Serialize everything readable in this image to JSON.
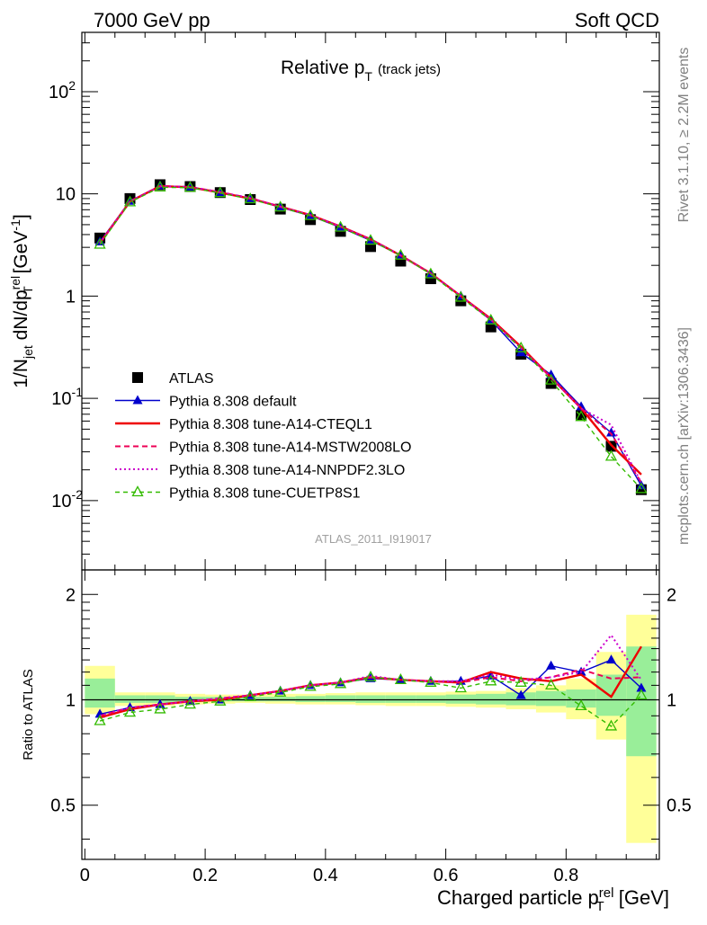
{
  "header": {
    "left": "7000 GeV pp",
    "right": "Soft QCD",
    "side_top": "Rivet 3.1.10, ≥ 2.2M events",
    "side_bottom": "mcplots.cern.ch [arXiv:1306.3436]",
    "analysis_id": "ATLAS_2011_I919017"
  },
  "chart_data": {
    "type": "line",
    "title_main": "Relative p",
    "title_sub": "T",
    "title_note": "(track jets)",
    "ylabel": "1/N_jet dN/dp_T^rel [GeV^-1]",
    "ratio_ylabel": "Ratio to ATLAS",
    "xlabel": "Charged particle p_T^rel [GeV]",
    "x_ticks": [
      "0",
      "0.2",
      "0.4",
      "0.6",
      "0.8"
    ],
    "y_ticks": [
      "10^-2",
      "10^-1",
      "1",
      "10",
      "10^2"
    ],
    "ratio_ticks": [
      "0.5",
      "1",
      "2"
    ],
    "xlim": [
      -0.005,
      0.955
    ],
    "ylim": [
      0.0021,
      380
    ],
    "ratio_ylim": [
      0.35,
      2.35
    ],
    "ratio_scale": "log",
    "y_scale": "log",
    "legend_position": "bottom-left",
    "x": [
      0.025,
      0.075,
      0.125,
      0.175,
      0.225,
      0.275,
      0.325,
      0.375,
      0.425,
      0.475,
      0.525,
      0.575,
      0.625,
      0.675,
      0.725,
      0.775,
      0.825,
      0.875,
      0.925
    ],
    "series": [
      {
        "name": "ATLAS",
        "style": "data",
        "color": "#000000",
        "values": [
          3.7,
          9.0,
          12.3,
          11.8,
          10.3,
          8.8,
          7.1,
          5.6,
          4.3,
          3.05,
          2.2,
          1.48,
          0.9,
          0.5,
          0.27,
          0.14,
          0.068,
          0.034,
          0.0128
        ],
        "ratio": [
          1,
          1,
          1,
          1,
          1,
          1,
          1,
          1,
          1,
          1,
          1,
          1,
          1,
          1,
          1,
          1,
          1,
          1,
          1
        ]
      },
      {
        "name": "Pythia 8.308 default",
        "style": "default",
        "color": "#0000cc",
        "values": [
          3.4,
          8.5,
          12.0,
          11.7,
          10.3,
          9.0,
          7.4,
          6.1,
          4.7,
          3.5,
          2.5,
          1.66,
          1.0,
          0.58,
          0.28,
          0.17,
          0.083,
          0.046,
          0.014
        ],
        "ratio": [
          0.91,
          0.95,
          0.97,
          0.99,
          1.0,
          1.03,
          1.06,
          1.1,
          1.12,
          1.15,
          1.14,
          1.13,
          1.13,
          1.17,
          1.03,
          1.25,
          1.2,
          1.3,
          1.08
        ]
      },
      {
        "name": "Pythia 8.308 tune-A14-CTEQL1",
        "style": "solid",
        "color": "#ee0000",
        "values": [
          3.3,
          8.4,
          11.9,
          11.6,
          10.3,
          9.0,
          7.5,
          6.2,
          4.8,
          3.6,
          2.5,
          1.67,
          1.0,
          0.6,
          0.32,
          0.16,
          0.08,
          0.035,
          0.018
        ],
        "ratio": [
          0.89,
          0.94,
          0.97,
          0.99,
          1.0,
          1.03,
          1.06,
          1.1,
          1.12,
          1.16,
          1.14,
          1.13,
          1.12,
          1.2,
          1.15,
          1.13,
          1.18,
          1.02,
          1.42
        ]
      },
      {
        "name": "Pythia 8.308 tune-A14-MSTW2008LO",
        "style": "dashed",
        "color": "#ee0055",
        "values": [
          3.3,
          8.5,
          11.9,
          11.7,
          10.4,
          9.1,
          7.5,
          6.2,
          4.8,
          3.6,
          2.5,
          1.67,
          1.0,
          0.59,
          0.31,
          0.16,
          0.08,
          0.045,
          0.015
        ],
        "ratio": [
          0.9,
          0.95,
          0.97,
          0.99,
          1.01,
          1.03,
          1.06,
          1.1,
          1.12,
          1.16,
          1.14,
          1.13,
          1.12,
          1.16,
          1.13,
          1.16,
          1.22,
          1.15,
          1.16
        ]
      },
      {
        "name": "Pythia 8.308 tune-A14-NNPDF2.3LO",
        "style": "dotted",
        "color": "#cc00cc",
        "values": [
          3.3,
          8.5,
          11.9,
          11.7,
          10.4,
          9.1,
          7.5,
          6.2,
          4.8,
          3.6,
          2.5,
          1.67,
          1.0,
          0.59,
          0.31,
          0.16,
          0.08,
          0.055,
          0.015
        ],
        "ratio": [
          0.9,
          0.95,
          0.97,
          0.99,
          1.01,
          1.03,
          1.06,
          1.1,
          1.12,
          1.17,
          1.14,
          1.13,
          1.13,
          1.18,
          1.14,
          1.16,
          1.2,
          1.53,
          1.14
        ]
      },
      {
        "name": "Pythia 8.308 tune-CUETP8S1",
        "style": "cuetp",
        "color": "#33bb00",
        "values": [
          3.2,
          8.3,
          11.6,
          11.5,
          10.2,
          8.9,
          7.4,
          6.1,
          4.7,
          3.5,
          2.5,
          1.64,
          0.97,
          0.58,
          0.31,
          0.15,
          0.066,
          0.027,
          0.013
        ],
        "ratio": [
          0.87,
          0.92,
          0.94,
          0.97,
          0.99,
          1.02,
          1.05,
          1.09,
          1.11,
          1.16,
          1.14,
          1.12,
          1.08,
          1.13,
          1.12,
          1.1,
          0.96,
          0.84,
          1.03
        ]
      }
    ],
    "ratio_bands": {
      "bins": [
        [
          0.0,
          0.05
        ],
        [
          0.05,
          0.1
        ],
        [
          0.1,
          0.15
        ],
        [
          0.15,
          0.2
        ],
        [
          0.2,
          0.25
        ],
        [
          0.25,
          0.3
        ],
        [
          0.3,
          0.35
        ],
        [
          0.35,
          0.4
        ],
        [
          0.4,
          0.45
        ],
        [
          0.45,
          0.5
        ],
        [
          0.5,
          0.55
        ],
        [
          0.55,
          0.6
        ],
        [
          0.6,
          0.65
        ],
        [
          0.65,
          0.7
        ],
        [
          0.7,
          0.75
        ],
        [
          0.75,
          0.8
        ],
        [
          0.8,
          0.85
        ],
        [
          0.85,
          0.9
        ],
        [
          0.9,
          0.95
        ]
      ],
      "stat_lo": [
        0.95,
        0.98,
        0.98,
        0.985,
        0.99,
        0.99,
        0.99,
        0.985,
        0.985,
        0.98,
        0.98,
        0.98,
        0.975,
        0.97,
        0.965,
        0.96,
        0.95,
        0.9,
        0.69
      ],
      "stat_hi": [
        1.15,
        1.03,
        1.03,
        1.02,
        1.02,
        1.02,
        1.02,
        1.025,
        1.03,
        1.03,
        1.03,
        1.03,
        1.035,
        1.04,
        1.05,
        1.06,
        1.07,
        1.18,
        1.42
      ],
      "tot_lo": [
        0.91,
        0.96,
        0.96,
        0.97,
        0.975,
        0.98,
        0.975,
        0.97,
        0.97,
        0.965,
        0.96,
        0.96,
        0.955,
        0.95,
        0.94,
        0.92,
        0.88,
        0.77,
        0.39
      ],
      "tot_hi": [
        1.25,
        1.05,
        1.05,
        1.04,
        1.035,
        1.035,
        1.04,
        1.04,
        1.045,
        1.05,
        1.05,
        1.05,
        1.055,
        1.06,
        1.08,
        1.1,
        1.15,
        1.37,
        1.75
      ]
    }
  }
}
